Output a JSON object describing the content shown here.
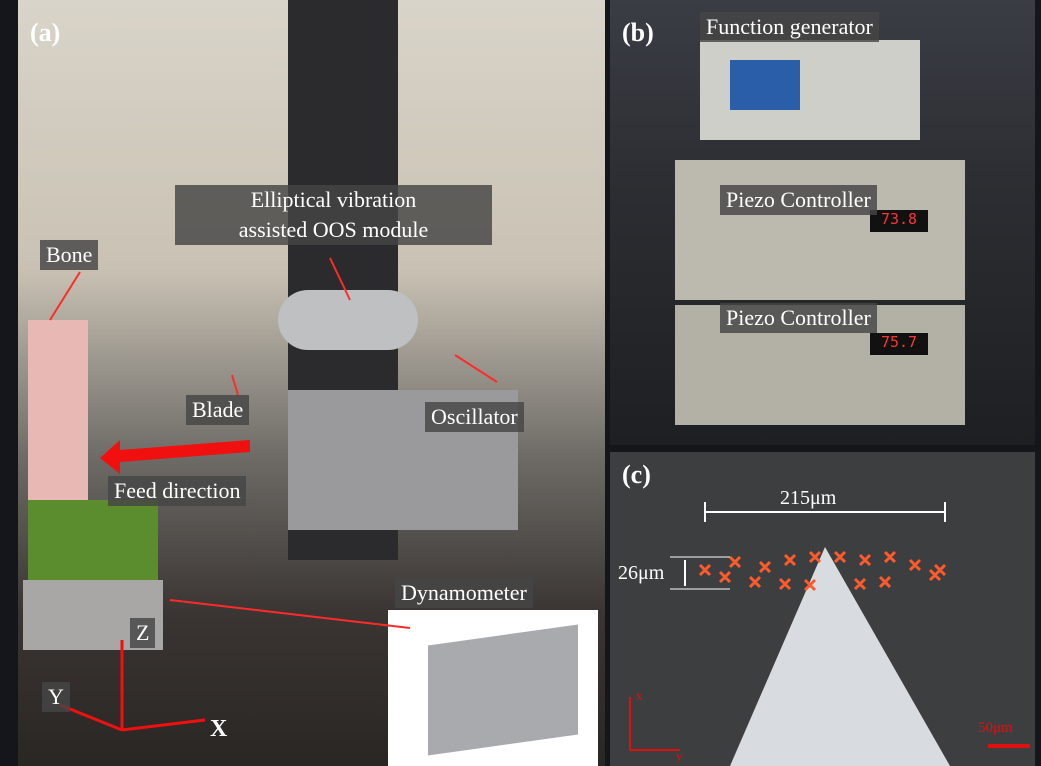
{
  "panels": [
    {
      "label": "(a)",
      "annotations": [
        "Bone",
        "Elliptical vibration",
        "assisted OOS module",
        "Blade",
        "Oscillator",
        "Feed direction",
        "Dynamometer",
        "Z",
        "Y",
        "X"
      ]
    },
    {
      "label": "(b)",
      "annotations": [
        "Function generator",
        "Piezo Controller",
        "Piezo Controller"
      ],
      "displays": [
        "73.8",
        "75.7"
      ]
    },
    {
      "label": "(c)",
      "annotations": [
        "215μm",
        "26μm",
        "50μm",
        "x",
        "y"
      ]
    }
  ]
}
